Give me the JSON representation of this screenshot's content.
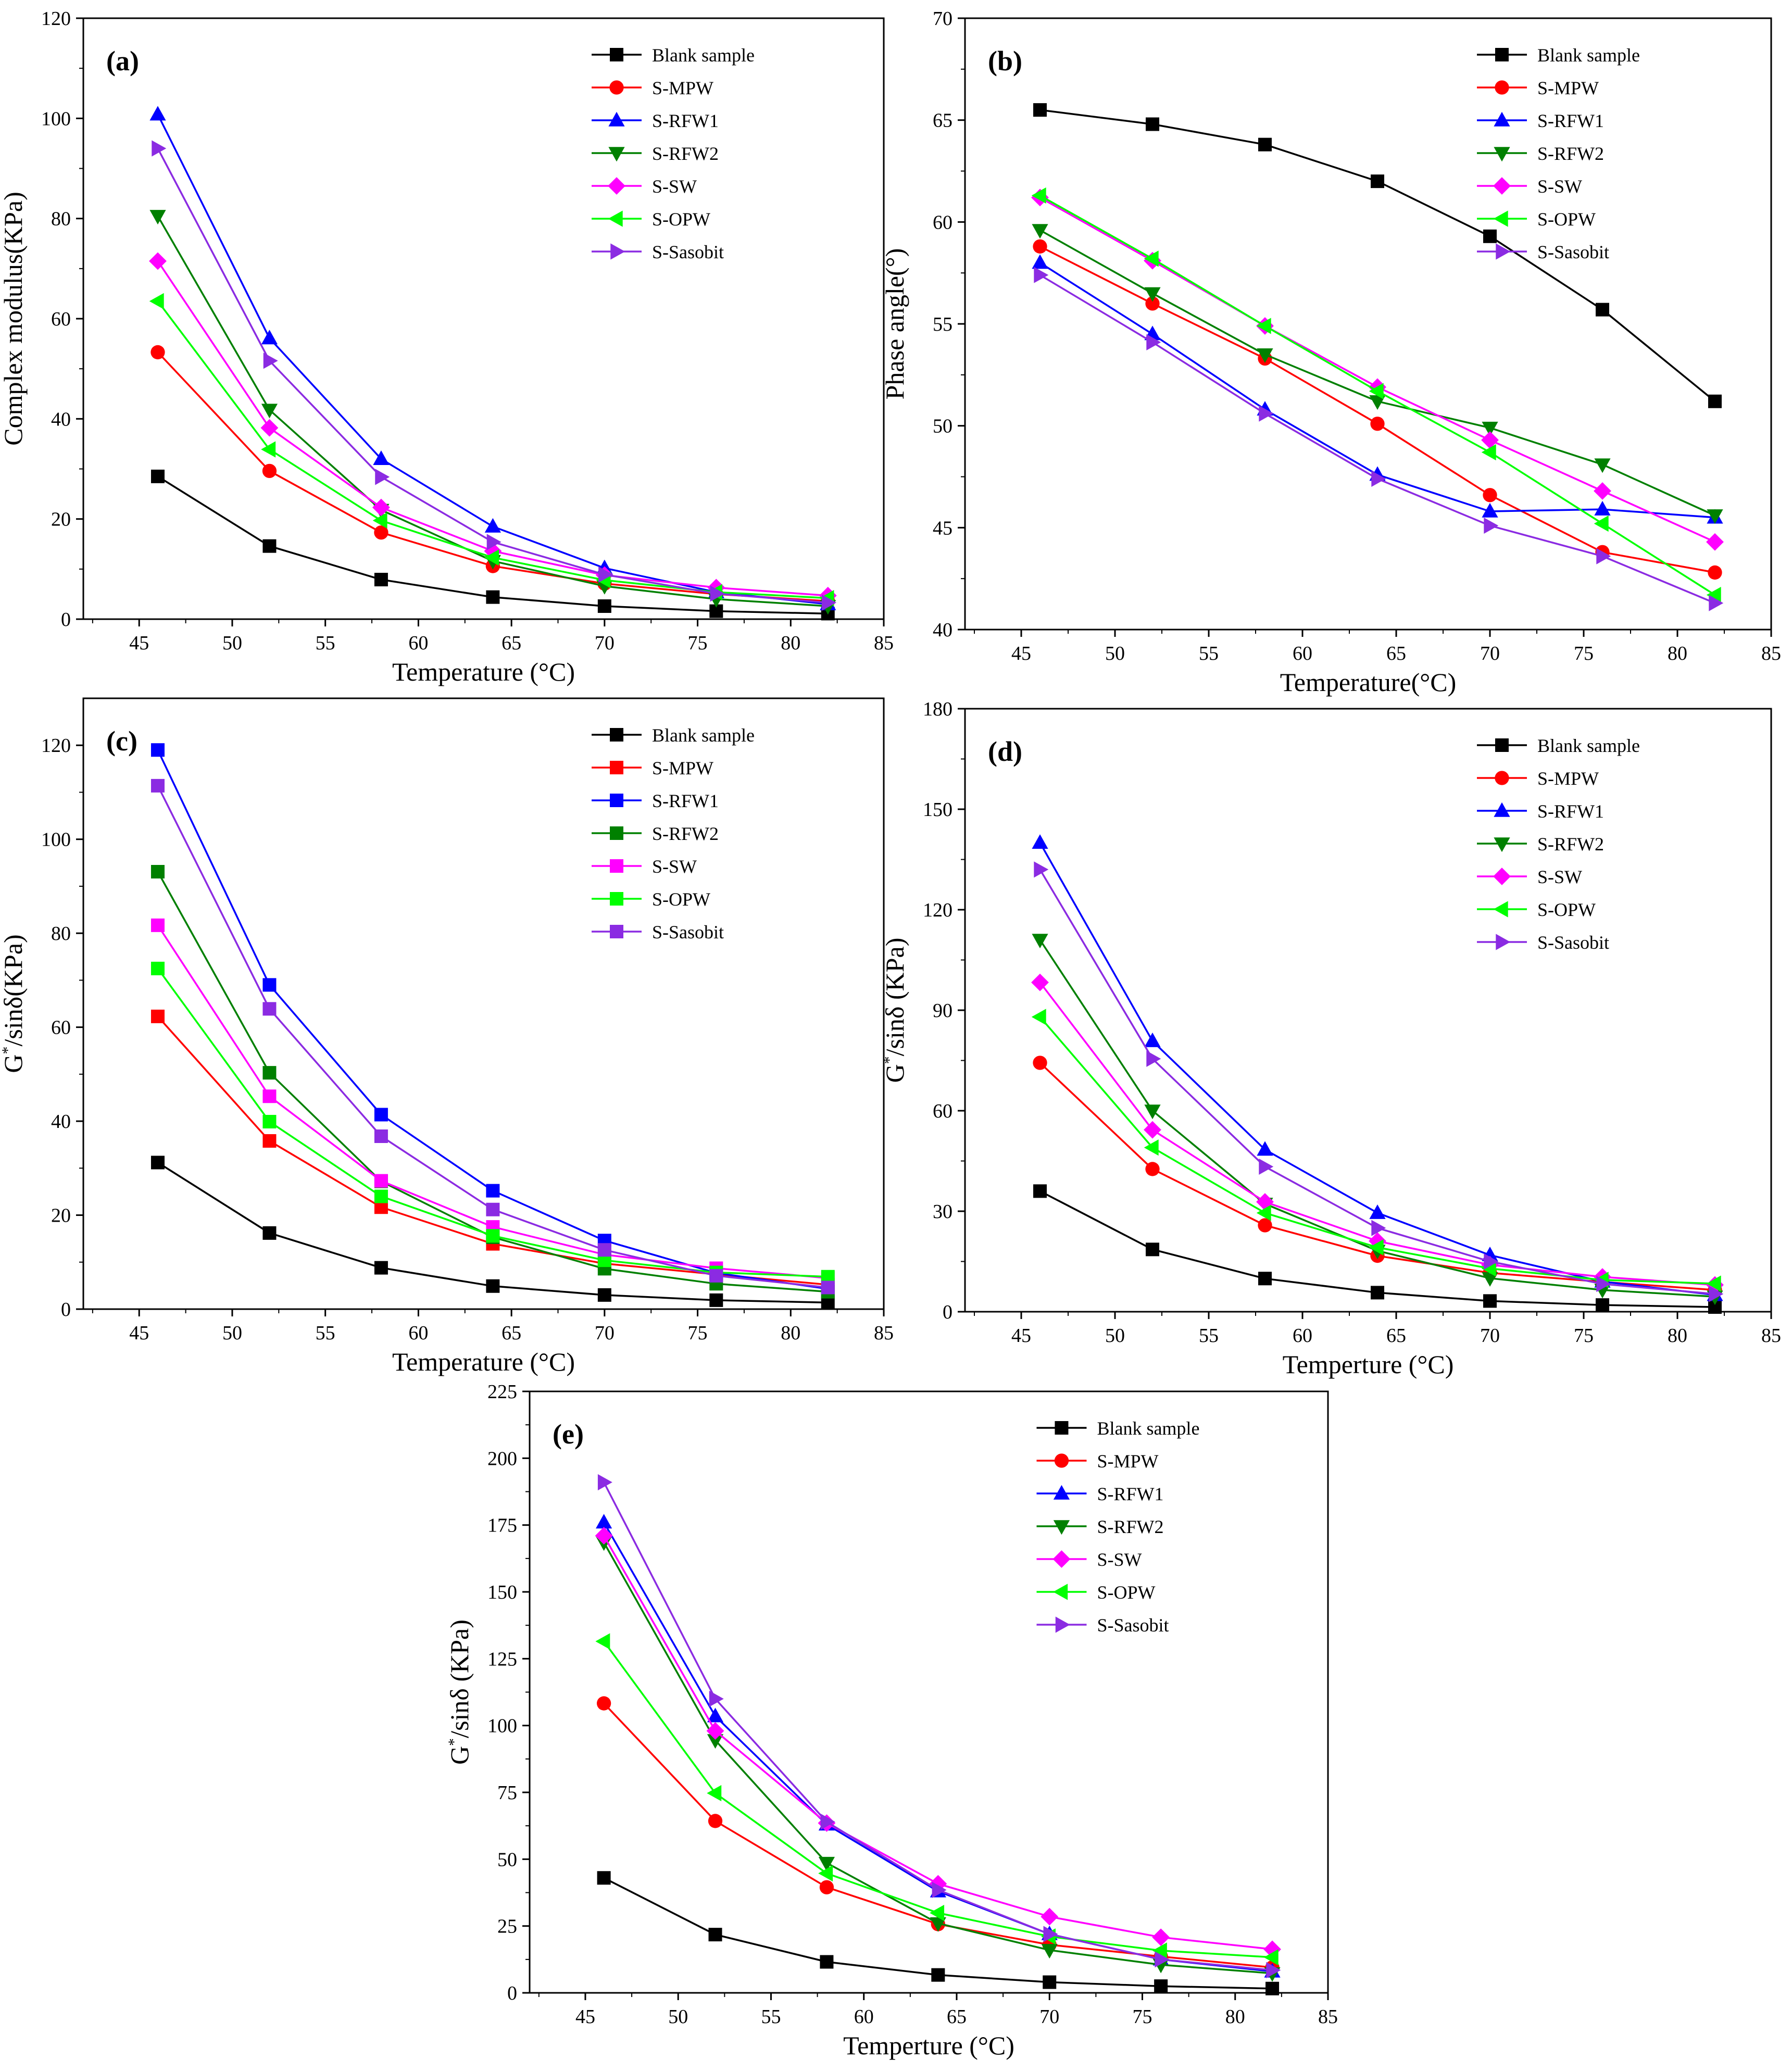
{
  "colors": {
    "Blank sample": "#000000",
    "S-MPW": "#ff0000",
    "S-RFW1": "#0000ff",
    "S-RFW2": "#008000",
    "S-SW": "#ff00ff",
    "S-OPW": "#00ff00",
    "S-Sasobit": "#8b2be2"
  },
  "chart_data": [
    {
      "panel": "(a)",
      "type": "line",
      "xlabel": "Temperature (°C)",
      "ylabel": "Complex modulus(KPa)",
      "xlim": [
        42,
        85
      ],
      "ylim": [
        0,
        120
      ],
      "xticks": [
        45,
        50,
        55,
        60,
        65,
        70,
        75,
        80,
        85
      ],
      "yticks": [
        0,
        20,
        40,
        60,
        80,
        100,
        120
      ],
      "legend_position": "top-right",
      "x": [
        46,
        52,
        58,
        64,
        70,
        76,
        82
      ],
      "series": [
        {
          "name": "Blank sample",
          "marker": "square",
          "values": [
            28.5,
            14.6,
            7.9,
            4.4,
            2.6,
            1.6,
            1.1
          ]
        },
        {
          "name": "S-MPW",
          "marker": "circle",
          "values": [
            53.3,
            29.6,
            17.3,
            10.6,
            7.1,
            5.0,
            3.6
          ]
        },
        {
          "name": "S-RFW1",
          "marker": "triangle-up",
          "values": [
            100.8,
            56.1,
            32.0,
            18.5,
            10.2,
            5.4,
            3.0
          ]
        },
        {
          "name": "S-RFW2",
          "marker": "triangle-down",
          "values": [
            80.5,
            41.8,
            21.8,
            11.6,
            6.6,
            4.0,
            2.6
          ]
        },
        {
          "name": "S-SW",
          "marker": "diamond",
          "values": [
            71.5,
            38.2,
            22.3,
            13.6,
            8.8,
            6.3,
            4.7
          ]
        },
        {
          "name": "S-OPW",
          "marker": "triangle-left",
          "values": [
            63.5,
            33.9,
            19.7,
            12.3,
            7.8,
            5.4,
            4.2
          ]
        },
        {
          "name": "S-Sasobit",
          "marker": "triangle-right",
          "values": [
            94.0,
            51.6,
            28.4,
            15.4,
            8.9,
            5.1,
            3.3
          ]
        }
      ]
    },
    {
      "panel": "(b)",
      "type": "line",
      "xlabel": "Temperature(°C)",
      "ylabel": "Phase angle(°)",
      "xlim": [
        42,
        85
      ],
      "ylim": [
        40,
        70
      ],
      "xticks": [
        45,
        50,
        55,
        60,
        65,
        70,
        75,
        80,
        85
      ],
      "yticks": [
        40,
        45,
        50,
        55,
        60,
        65,
        70
      ],
      "legend_position": "top-right",
      "x": [
        46,
        52,
        58,
        64,
        70,
        76,
        82
      ],
      "series": [
        {
          "name": "Blank sample",
          "marker": "square",
          "values": [
            65.5,
            64.8,
            63.8,
            62.0,
            59.3,
            55.7,
            51.2
          ]
        },
        {
          "name": "S-MPW",
          "marker": "circle",
          "values": [
            58.8,
            56.0,
            53.3,
            50.1,
            46.6,
            43.8,
            42.8
          ]
        },
        {
          "name": "S-RFW1",
          "marker": "triangle-up",
          "values": [
            58.0,
            54.5,
            50.8,
            47.6,
            45.8,
            45.9,
            45.5
          ]
        },
        {
          "name": "S-RFW2",
          "marker": "triangle-down",
          "values": [
            59.6,
            56.5,
            53.5,
            51.2,
            49.9,
            48.1,
            45.6
          ]
        },
        {
          "name": "S-SW",
          "marker": "diamond",
          "values": [
            61.2,
            58.1,
            54.9,
            51.9,
            49.3,
            46.8,
            44.3
          ]
        },
        {
          "name": "S-OPW",
          "marker": "triangle-left",
          "values": [
            61.3,
            58.2,
            54.9,
            51.7,
            48.7,
            45.2,
            41.7
          ]
        },
        {
          "name": "S-Sasobit",
          "marker": "triangle-right",
          "values": [
            57.4,
            54.1,
            50.6,
            47.4,
            45.1,
            43.6,
            41.3
          ]
        }
      ]
    },
    {
      "panel": "(c)",
      "type": "line",
      "xlabel": "Temperature (°C)",
      "ylabel": "G*/sinδ(KPa)",
      "xlim": [
        42,
        85
      ],
      "ylim": [
        0,
        130
      ],
      "xticks": [
        45,
        50,
        55,
        60,
        65,
        70,
        75,
        80,
        85
      ],
      "yticks": [
        0,
        20,
        40,
        60,
        80,
        100,
        120
      ],
      "legend_position": "top-right",
      "x": [
        46,
        52,
        58,
        64,
        70,
        76,
        82
      ],
      "series": [
        {
          "name": "Blank sample",
          "marker": "square",
          "values": [
            31.2,
            16.2,
            8.8,
            4.9,
            3.0,
            1.9,
            1.4
          ]
        },
        {
          "name": "S-MPW",
          "marker": "square",
          "values": [
            62.3,
            35.8,
            21.7,
            13.9,
            9.7,
            7.4,
            5.2
          ]
        },
        {
          "name": "S-RFW1",
          "marker": "square",
          "values": [
            119.0,
            69.0,
            41.4,
            25.2,
            14.6,
            7.7,
            4.3
          ]
        },
        {
          "name": "S-RFW2",
          "marker": "square",
          "values": [
            93.1,
            50.3,
            27.2,
            15.3,
            8.6,
            5.4,
            3.7
          ]
        },
        {
          "name": "S-SW",
          "marker": "square",
          "values": [
            81.7,
            45.3,
            27.3,
            17.5,
            11.6,
            8.7,
            6.6
          ]
        },
        {
          "name": "S-OPW",
          "marker": "square",
          "values": [
            72.5,
            39.9,
            24.0,
            15.6,
            10.4,
            7.8,
            6.9
          ]
        },
        {
          "name": "S-Sasobit",
          "marker": "square",
          "values": [
            111.4,
            63.9,
            36.8,
            21.2,
            12.6,
            7.1,
            4.6
          ]
        }
      ]
    },
    {
      "panel": "(d)",
      "type": "line",
      "xlabel": "Temperture (°C)",
      "ylabel": "G*/sinδ (KPa)",
      "xlim": [
        42,
        85
      ],
      "ylim": [
        0,
        180
      ],
      "xticks": [
        45,
        50,
        55,
        60,
        65,
        70,
        75,
        80,
        85
      ],
      "yticks": [
        0,
        30,
        60,
        90,
        120,
        150,
        180
      ],
      "legend_position": "top-right",
      "x": [
        46,
        52,
        58,
        64,
        70,
        76,
        82
      ],
      "series": [
        {
          "name": "Blank sample",
          "marker": "square",
          "values": [
            36.0,
            18.6,
            9.9,
            5.7,
            3.2,
            2.0,
            1.4
          ]
        },
        {
          "name": "S-MPW",
          "marker": "circle",
          "values": [
            74.3,
            42.6,
            25.8,
            16.7,
            11.6,
            8.9,
            6.5
          ]
        },
        {
          "name": "S-RFW1",
          "marker": "triangle-up",
          "values": [
            140.0,
            80.8,
            48.4,
            29.5,
            16.9,
            9.0,
            5.0
          ]
        },
        {
          "name": "S-RFW2",
          "marker": "triangle-down",
          "values": [
            111.0,
            60.0,
            32.2,
            18.2,
            10.0,
            6.5,
            4.5
          ]
        },
        {
          "name": "S-SW",
          "marker": "diamond",
          "values": [
            98.3,
            54.3,
            32.8,
            21.1,
            14.0,
            10.4,
            8.0
          ]
        },
        {
          "name": "S-OPW",
          "marker": "triangle-left",
          "values": [
            88.0,
            49.0,
            29.5,
            19.2,
            12.9,
            9.5,
            8.4
          ]
        },
        {
          "name": "S-Sasobit",
          "marker": "triangle-right",
          "values": [
            132.0,
            75.5,
            43.3,
            25.0,
            15.0,
            8.3,
            5.3
          ]
        }
      ]
    },
    {
      "panel": "(e)",
      "type": "line",
      "xlabel": "Temperture (°C)",
      "ylabel": "G*/sinδ (KPa)",
      "xlim": [
        42,
        85
      ],
      "ylim": [
        0,
        225
      ],
      "xticks": [
        45,
        50,
        55,
        60,
        65,
        70,
        75,
        80,
        85
      ],
      "yticks": [
        0,
        25,
        50,
        75,
        100,
        125,
        150,
        175,
        200,
        225
      ],
      "legend_position": "top-right",
      "x": [
        46,
        52,
        58,
        64,
        70,
        76,
        82
      ],
      "series": [
        {
          "name": "Blank sample",
          "marker": "square",
          "values": [
            43.0,
            21.8,
            11.6,
            6.7,
            4.0,
            2.5,
            1.6
          ]
        },
        {
          "name": "S-MPW",
          "marker": "circle",
          "values": [
            108.3,
            64.3,
            39.5,
            25.7,
            18.0,
            13.6,
            9.5
          ]
        },
        {
          "name": "S-RFW1",
          "marker": "triangle-up",
          "values": [
            176.0,
            103.5,
            63.0,
            38.0,
            22.0,
            12.5,
            8.0
          ]
        },
        {
          "name": "S-RFW2",
          "marker": "triangle-down",
          "values": [
            168.5,
            94.5,
            48.6,
            26.0,
            16.0,
            10.5,
            7.3
          ]
        },
        {
          "name": "S-SW",
          "marker": "diamond",
          "values": [
            171.0,
            98.0,
            63.5,
            40.8,
            28.5,
            20.8,
            16.3
          ]
        },
        {
          "name": "S-OPW",
          "marker": "triangle-left",
          "values": [
            131.5,
            74.7,
            44.7,
            29.9,
            21.1,
            15.8,
            13.3
          ]
        },
        {
          "name": "S-Sasobit",
          "marker": "triangle-right",
          "values": [
            191.0,
            110.0,
            64.0,
            38.5,
            22.0,
            12.5,
            8.5
          ]
        }
      ]
    }
  ]
}
